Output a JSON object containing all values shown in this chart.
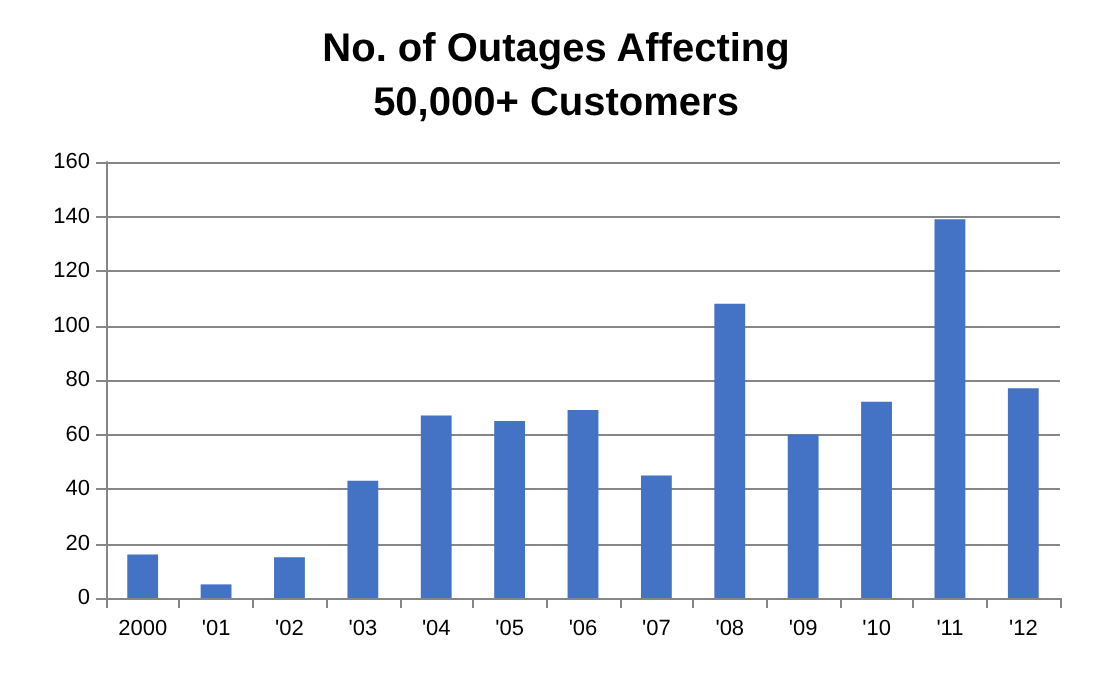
{
  "chart_data": {
    "type": "bar",
    "title": "No. of Outages Affecting\n50,000+ Customers",
    "categories": [
      "2000",
      "'01",
      "'02",
      "'03",
      "'04",
      "'05",
      "'06",
      "'07",
      "'08",
      "'09",
      "'10",
      "'11",
      "'12"
    ],
    "values": [
      16,
      5,
      15,
      43,
      67,
      65,
      69,
      45,
      108,
      60,
      72,
      139,
      77
    ],
    "color": "#4472c4",
    "ylim": [
      0,
      160
    ],
    "yticks": [
      0,
      20,
      40,
      60,
      80,
      100,
      120,
      140,
      160
    ],
    "grid": "y"
  }
}
